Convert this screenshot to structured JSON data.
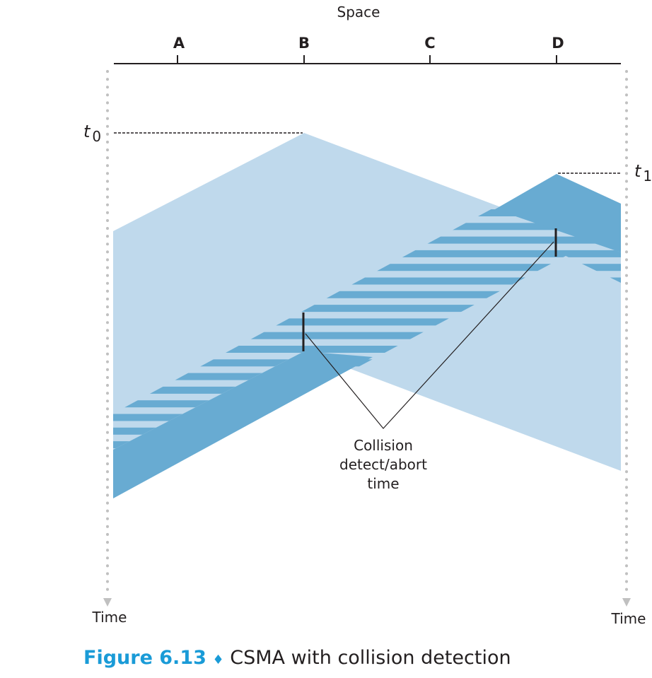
{
  "diagram": {
    "space_label": "Space",
    "stations": [
      "A",
      "B",
      "C",
      "D"
    ],
    "t0_label": "t",
    "t0_sub": "0",
    "t1_label": "t",
    "t1_sub": "1",
    "time_left": "Time",
    "time_right": "Time",
    "annotation": [
      "Collision",
      "detect/abort",
      "time"
    ],
    "colors": {
      "light": "#bfd9ec",
      "dark": "#68abd2",
      "axis": "#231f20",
      "dots": "#c0c0c0",
      "caption_accent": "#1a9bd7"
    }
  },
  "caption": {
    "figure": "Figure 6.13",
    "separator": "♦",
    "text": "CSMA with collision detection"
  }
}
